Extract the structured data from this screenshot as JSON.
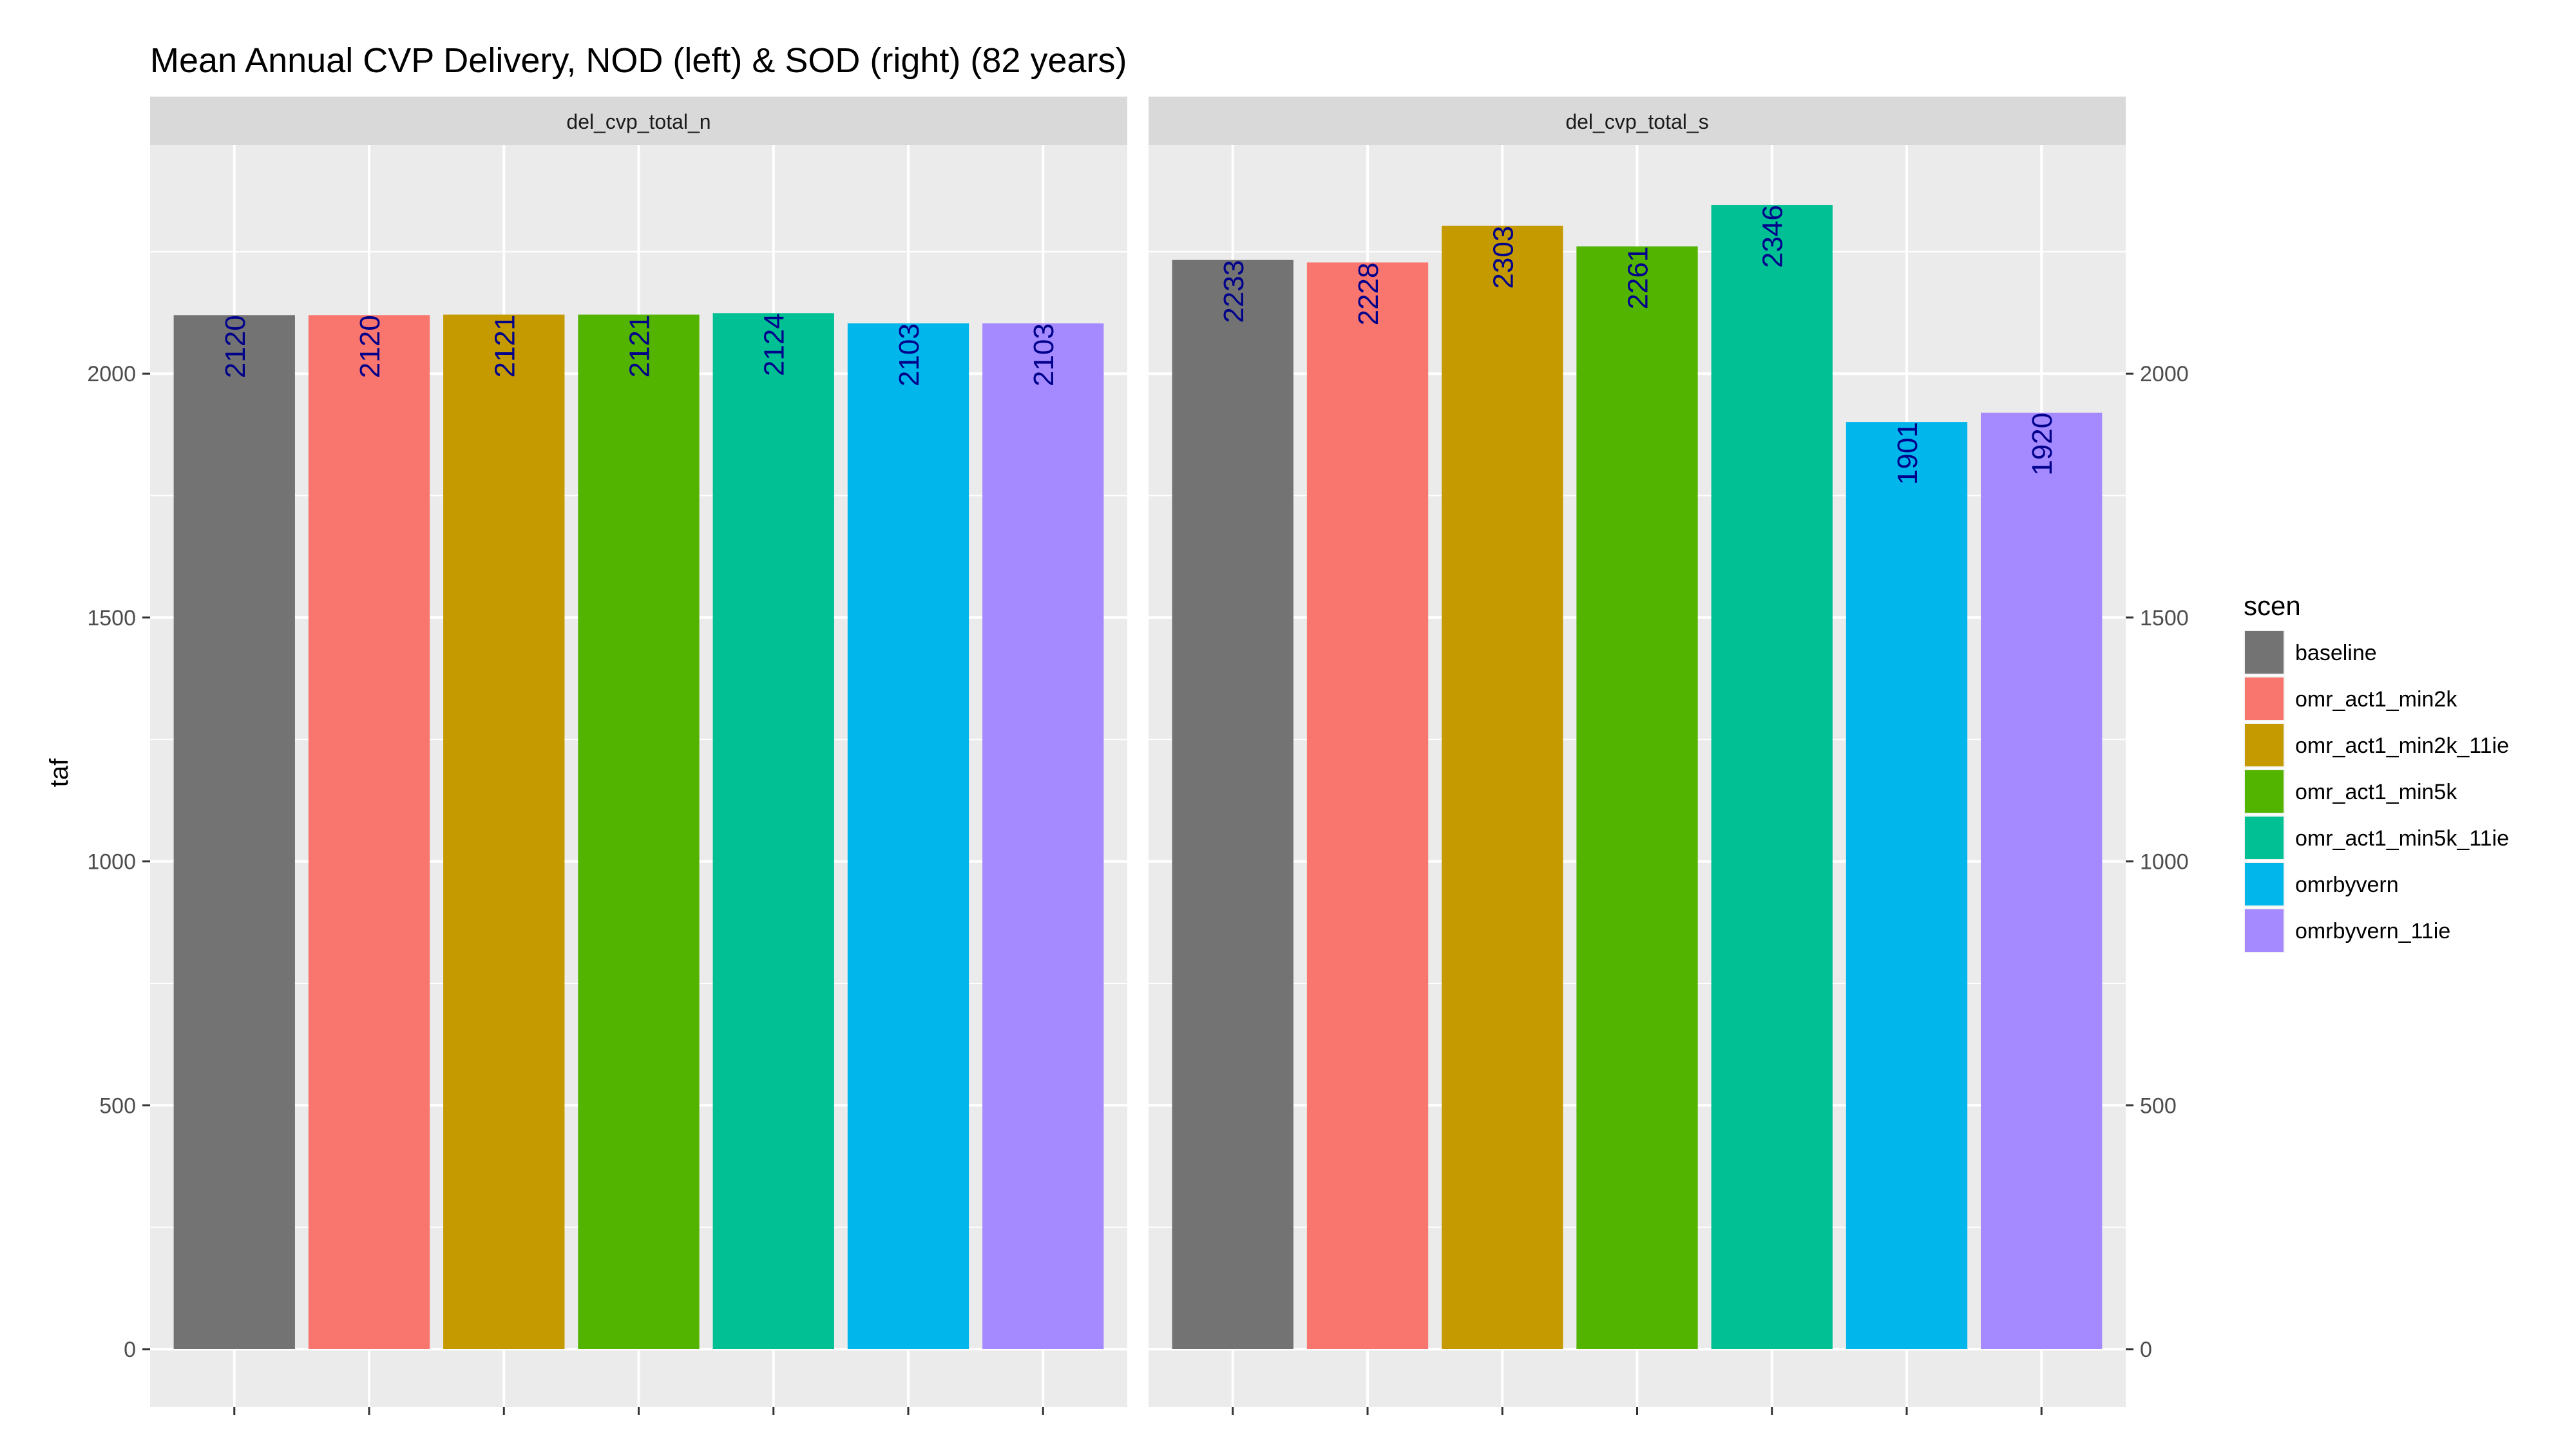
{
  "chart_data": {
    "type": "bar",
    "title": "Mean Annual CVP Delivery, NOD (left) & SOD (right) (82 years)",
    "ylabel": "taf",
    "xlabel": "",
    "ylim": [
      0,
      2450
    ],
    "yticks": [
      0,
      500,
      1000,
      1500,
      2000
    ],
    "grid": true,
    "legend_position": "right",
    "legend_title": "scen",
    "categories": [
      "baseline",
      "omr_act1_min2k",
      "omr_act1_min2k_11ie",
      "omr_act1_min5k",
      "omr_act1_min5k_11ie",
      "omrbyvern",
      "omrbyvern_11ie"
    ],
    "colors": [
      "#737373",
      "#f8766d",
      "#c49a00",
      "#53b400",
      "#00c094",
      "#00b6eb",
      "#a58aff"
    ],
    "label_color": "#00008b",
    "panel_bg": "#ebebeb",
    "strip_bg": "#d9d9d9",
    "panels": [
      {
        "strip": "del_cvp_total_n",
        "values": [
          2120,
          2120,
          2121,
          2121,
          2124,
          2103,
          2103
        ]
      },
      {
        "strip": "del_cvp_total_s",
        "values": [
          2233,
          2228,
          2303,
          2261,
          2346,
          1901,
          1920
        ]
      }
    ]
  }
}
